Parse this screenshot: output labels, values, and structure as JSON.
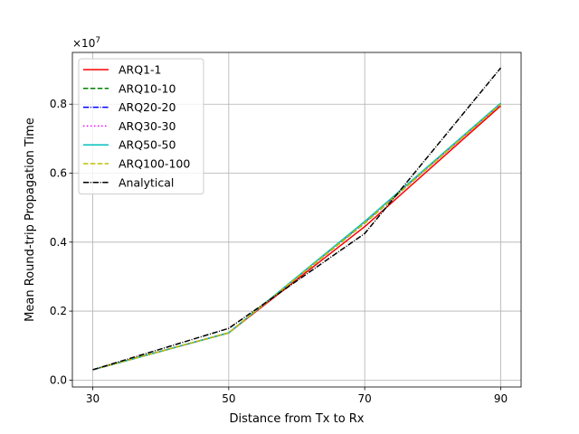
{
  "chart_data": {
    "type": "line",
    "title": "",
    "xlabel": "Distance from Tx to Rx",
    "ylabel": "Mean Round-trip Propagation Time",
    "offset_label": "×10",
    "offset_exponent": "7",
    "x": [
      30,
      50,
      70,
      90
    ],
    "xticks": [
      30,
      50,
      70,
      90
    ],
    "xtick_labels": [
      "30",
      "50",
      "70",
      "90"
    ],
    "yticks": [
      0.0,
      0.2,
      0.4,
      0.6,
      0.8
    ],
    "ytick_labels": [
      "0.0",
      "0.2",
      "0.4",
      "0.6",
      "0.8"
    ],
    "xlim": [
      27.0,
      93.0
    ],
    "ylim": [
      -0.02,
      0.95
    ],
    "grid": true,
    "legend_position": "top-left",
    "series": [
      {
        "name": "ARQ1-1",
        "color": "#ff0000",
        "dash": "solid",
        "x": [
          30,
          50,
          70,
          90
        ],
        "values": [
          0.03,
          0.137,
          0.445,
          0.795
        ]
      },
      {
        "name": "ARQ10-10",
        "color": "#008000",
        "dash": "dashed",
        "x": [
          30,
          50,
          70,
          90
        ],
        "values": [
          0.03,
          0.137,
          0.455,
          0.8
        ]
      },
      {
        "name": "ARQ20-20",
        "color": "#0000ff",
        "dash": "dashdot",
        "x": [
          30,
          50,
          70,
          90
        ],
        "values": [
          0.03,
          0.137,
          0.458,
          0.802
        ]
      },
      {
        "name": "ARQ30-30",
        "color": "#ff00ff",
        "dash": "dotted",
        "x": [
          30,
          50,
          70,
          90
        ],
        "values": [
          0.03,
          0.137,
          0.457,
          0.8
        ]
      },
      {
        "name": "ARQ50-50",
        "color": "#00bfbf",
        "dash": "solid",
        "x": [
          30,
          50,
          70,
          90
        ],
        "values": [
          0.03,
          0.137,
          0.46,
          0.803
        ]
      },
      {
        "name": "ARQ100-100",
        "color": "#bfbf00",
        "dash": "dashed",
        "x": [
          30,
          50,
          70,
          90
        ],
        "values": [
          0.03,
          0.137,
          0.456,
          0.8
        ]
      },
      {
        "name": "Analytical",
        "color": "#000000",
        "dash": "dashdot",
        "x": [
          30,
          50,
          70,
          90
        ],
        "values": [
          0.03,
          0.15,
          0.425,
          0.905
        ]
      }
    ]
  }
}
